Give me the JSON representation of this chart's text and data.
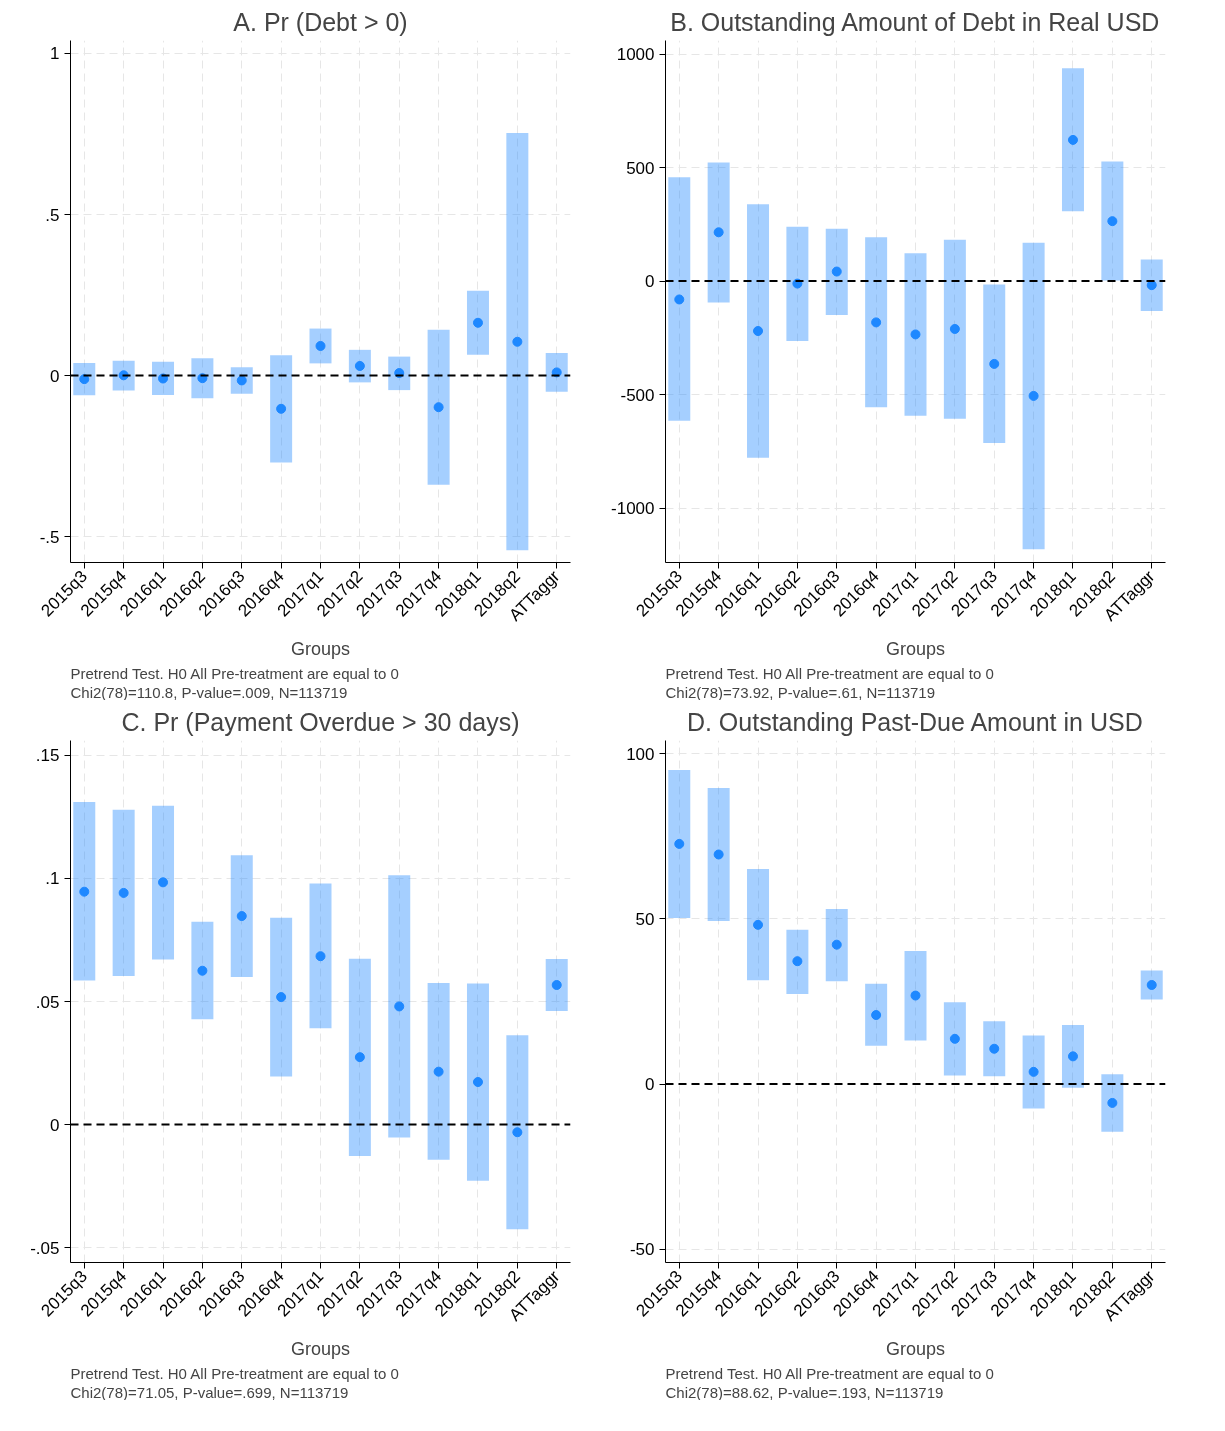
{
  "chart_data": [
    {
      "type": "scatter",
      "title": "A. Pr (Debt > 0)",
      "xlabel": "Groups",
      "categories": [
        "2015q3",
        "2015q4",
        "2016q1",
        "2016q2",
        "2016q3",
        "2016q4",
        "2017q1",
        "2017q2",
        "2017q3",
        "2017q4",
        "2018q1",
        "2018q2",
        "ATTaggr"
      ],
      "series": [
        {
          "color": "#1e88ff",
          "values": [
            -0.011,
            0.001,
            -0.009,
            -0.008,
            -0.015,
            -0.103,
            0.092,
            0.03,
            0.008,
            -0.098,
            0.164,
            0.105,
            0.01
          ],
          "errors": [
            [
              -0.061,
              0.039
            ],
            [
              -0.046,
              0.046
            ],
            [
              -0.06,
              0.043
            ],
            [
              -0.07,
              0.054
            ],
            [
              -0.056,
              0.026
            ],
            [
              -0.27,
              0.063
            ],
            [
              0.038,
              0.146
            ],
            [
              -0.021,
              0.08
            ],
            [
              -0.045,
              0.059
            ],
            [
              -0.339,
              0.142
            ],
            [
              0.065,
              0.263
            ],
            [
              -0.542,
              0.753
            ],
            [
              -0.05,
              0.07
            ]
          ]
        }
      ],
      "ylim": [
        -0.58,
        1.04
      ],
      "yticks": [
        {
          "value": -0.5,
          "label": "-.5"
        },
        0,
        {
          "value": 0.5,
          "label": ".5"
        },
        1
      ],
      "ref_lines": [
        {
          "axis": "y",
          "value": 0,
          "color": "#000000",
          "line_style": "dashed"
        }
      ],
      "grid": true,
      "marker": "circle",
      "annotations": [
        "Pretrend Test. H0 All Pre-treatment are equal to 0",
        "Chi2(78)=110.8, P-value=.009, N=113719"
      ]
    },
    {
      "type": "scatter",
      "title": "B. Outstanding Amount of Debt in Real USD",
      "xlabel": "Groups",
      "categories": [
        "2015q3",
        "2015q4",
        "2016q1",
        "2016q2",
        "2016q3",
        "2016q4",
        "2017q1",
        "2017q2",
        "2017q3",
        "2017q4",
        "2018q1",
        "2018q2",
        "ATTaggr"
      ],
      "series": [
        {
          "color": "#1e88ff",
          "values": [
            -81,
            215,
            -220,
            -11,
            42,
            -182,
            -235,
            -211,
            -365,
            -506,
            622,
            264,
            -18
          ],
          "errors": [
            [
              -615,
              457
            ],
            [
              -94,
              523
            ],
            [
              -778,
              338
            ],
            [
              -264,
              239
            ],
            [
              -150,
              231
            ],
            [
              -556,
              193
            ],
            [
              -593,
              123
            ],
            [
              -607,
              182
            ],
            [
              -714,
              -15
            ],
            [
              -1182,
              169
            ],
            [
              308,
              938
            ],
            [
              3,
              527
            ],
            [
              -132,
              95
            ]
          ]
        }
      ],
      "ylim": [
        -1240,
        1060
      ],
      "yticks": [
        -1000,
        -500,
        0,
        500,
        1000
      ],
      "ref_lines": [
        {
          "axis": "y",
          "value": 0,
          "color": "#000000",
          "line_style": "dashed"
        }
      ],
      "grid": true,
      "marker": "circle",
      "annotations": [
        "Pretrend Test. H0 All Pre-treatment are equal to 0",
        "Chi2(78)=73.92, P-value=.61, N=113719"
      ]
    },
    {
      "type": "scatter",
      "title": "C. Pr (Payment Overdue > 30 days)",
      "xlabel": "Groups",
      "categories": [
        "2015q3",
        "2015q4",
        "2016q1",
        "2016q2",
        "2016q3",
        "2016q4",
        "2017q1",
        "2017q2",
        "2017q3",
        "2017q4",
        "2018q1",
        "2018q2",
        "ATTaggr"
      ],
      "series": [
        {
          "color": "#1e88ff",
          "values": [
            0.0946,
            0.0941,
            0.0984,
            0.0625,
            0.0847,
            0.0518,
            0.0684,
            0.0274,
            0.048,
            0.0215,
            0.0173,
            -0.0031,
            0.0567
          ],
          "errors": [
            [
              0.0585,
              0.131
            ],
            [
              0.0604,
              0.1279
            ],
            [
              0.0671,
              0.1295
            ],
            [
              0.0428,
              0.0824
            ],
            [
              0.0599,
              0.1094
            ],
            [
              0.0195,
              0.084
            ],
            [
              0.0391,
              0.0979
            ],
            [
              -0.0127,
              0.0674
            ],
            [
              -0.0052,
              0.1013
            ],
            [
              -0.0143,
              0.0575
            ],
            [
              -0.0228,
              0.0573
            ],
            [
              -0.0425,
              0.0363
            ],
            [
              0.0461,
              0.0673
            ]
          ]
        }
      ],
      "ylim": [
        -0.056,
        0.156
      ],
      "yticks": [
        {
          "value": -0.05,
          "label": "-.05"
        },
        0,
        {
          "value": 0.05,
          "label": ".05"
        },
        {
          "value": 0.1,
          "label": ".1"
        },
        {
          "value": 0.15,
          "label": ".15"
        }
      ],
      "ref_lines": [
        {
          "axis": "y",
          "value": 0,
          "color": "#000000",
          "line_style": "dashed"
        }
      ],
      "grid": true,
      "marker": "circle",
      "annotations": [
        "Pretrend Test. H0 All Pre-treatment are equal to 0",
        "Chi2(78)=71.05, P-value=.699, N=113719"
      ]
    },
    {
      "type": "scatter",
      "title": "D. Outstanding Past-Due Amount in USD",
      "xlabel": "Groups",
      "categories": [
        "2015q3",
        "2015q4",
        "2016q1",
        "2016q2",
        "2016q3",
        "2016q4",
        "2017q1",
        "2017q2",
        "2017q3",
        "2017q4",
        "2018q1",
        "2018q2",
        "ATTaggr"
      ],
      "series": [
        {
          "color": "#1e88ff",
          "values": [
            72.7,
            69.5,
            48.2,
            37.2,
            42.2,
            20.9,
            26.8,
            13.7,
            10.7,
            3.7,
            8.4,
            -5.7,
            30.0
          ],
          "errors": [
            [
              50.3,
              95.1
            ],
            [
              49.4,
              89.6
            ],
            [
              31.4,
              65.1
            ],
            [
              27.3,
              46.7
            ],
            [
              31.1,
              53.0
            ],
            [
              11.6,
              30.4
            ],
            [
              13.2,
              40.3
            ],
            [
              2.6,
              24.8
            ],
            [
              2.4,
              19.0
            ],
            [
              -7.4,
              14.7
            ],
            [
              -1.1,
              17.9
            ],
            [
              -14.4,
              3.0
            ],
            [
              25.6,
              34.4
            ]
          ]
        }
      ],
      "ylim": [
        -54,
        104
      ],
      "yticks": [
        -50,
        0,
        50,
        100
      ],
      "ref_lines": [
        {
          "axis": "y",
          "value": 0,
          "color": "#000000",
          "line_style": "dashed"
        }
      ],
      "grid": true,
      "marker": "circle",
      "annotations": [
        "Pretrend Test. H0 All Pre-treatment are equal to 0",
        "Chi2(78)=88.62, P-value=.193, N=113719"
      ]
    }
  ]
}
